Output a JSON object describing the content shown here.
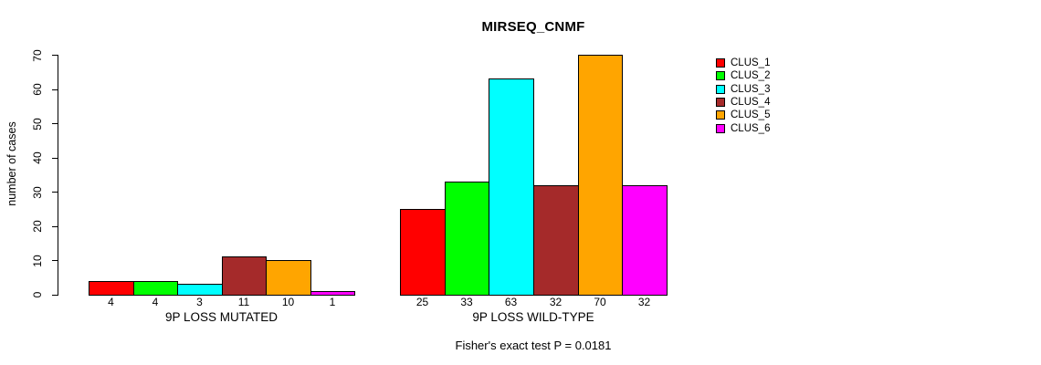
{
  "chart_data": {
    "type": "bar",
    "title": "MIRSEQ_CNMF",
    "ylabel": "number of cases",
    "xlabel": "",
    "ylim": [
      0,
      70
    ],
    "yticks": [
      0,
      10,
      20,
      30,
      40,
      50,
      60,
      70
    ],
    "grid": false,
    "legend_position": "right-outside-top",
    "categories": [
      "9P LOSS MUTATED",
      "9P LOSS WILD-TYPE"
    ],
    "series": [
      {
        "name": "CLUS_1",
        "color": "#FF0000",
        "values": [
          4,
          25
        ]
      },
      {
        "name": "CLUS_2",
        "color": "#00FF00",
        "values": [
          4,
          33
        ]
      },
      {
        "name": "CLUS_3",
        "color": "#00FFFF",
        "values": [
          3,
          63
        ]
      },
      {
        "name": "CLUS_4",
        "color": "#A52A2A",
        "values": [
          11,
          32
        ]
      },
      {
        "name": "CLUS_5",
        "color": "#FFA500",
        "values": [
          10,
          70
        ]
      },
      {
        "name": "CLUS_6",
        "color": "#FF00FF",
        "values": [
          1,
          32
        ]
      }
    ],
    "bar_value_labels_shown": true,
    "annotation": "Fisher's exact test P = 0.0181"
  }
}
